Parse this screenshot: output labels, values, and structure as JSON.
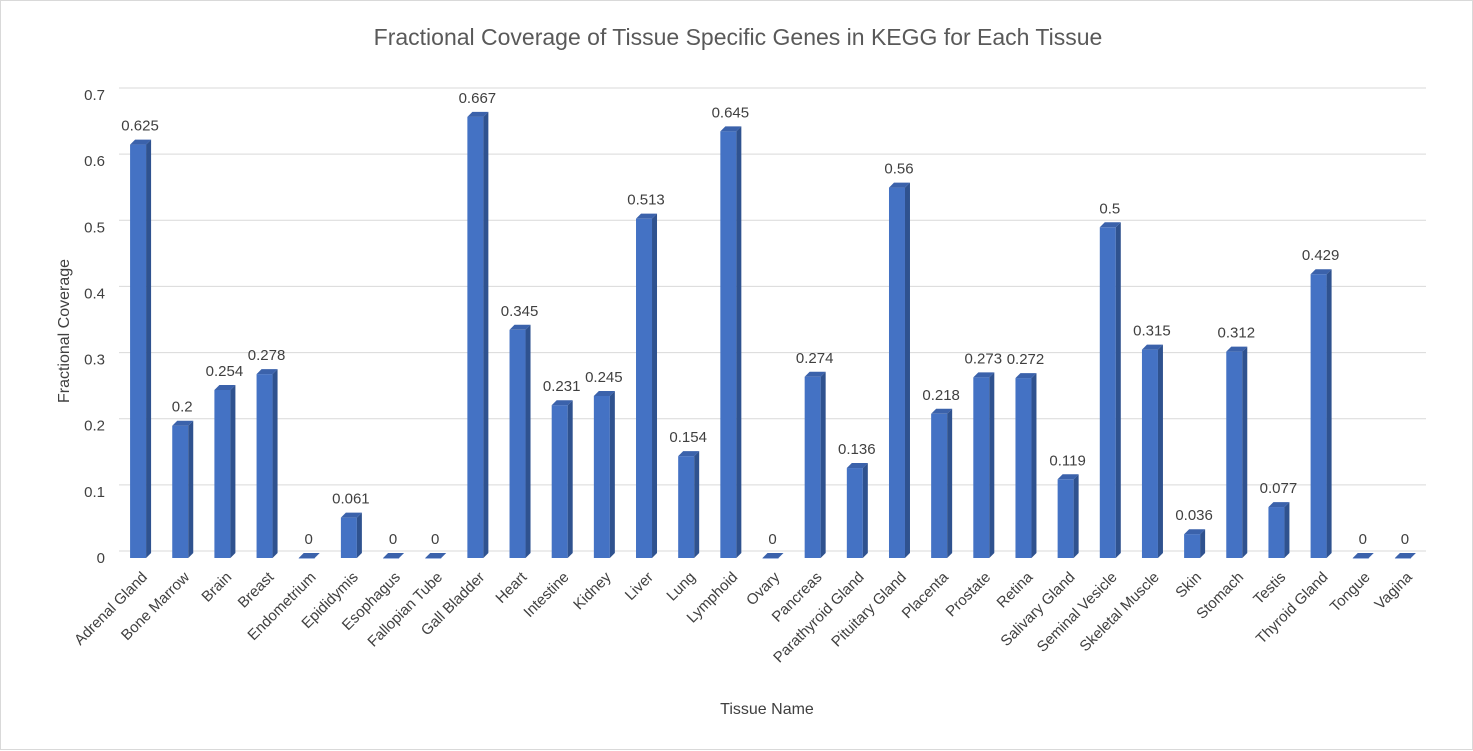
{
  "chart_data": {
    "type": "bar",
    "title": "Fractional Coverage of Tissue Specific Genes in KEGG for Each Tissue",
    "xlabel": "Tissue Name",
    "ylabel": "Fractional Coverage",
    "ylim": [
      0,
      0.7
    ],
    "yticks": [
      "0",
      "0.1",
      "0.2",
      "0.3",
      "0.4",
      "0.5",
      "0.6",
      "0.7"
    ],
    "grid": true,
    "legend": "none",
    "bar_color": "#4472c4",
    "categories": [
      "Adrenal Gland",
      "Bone Marrow",
      "Brain",
      "Breast",
      "Endometrium",
      "Epididymis",
      "Esophagus",
      "Fallopian Tube",
      "Gall Bladder",
      "Heart",
      "Intestine",
      "Kidney",
      "Liver",
      "Lung",
      "Lymphoid",
      "Ovary",
      "Pancreas",
      "Parathyroid Gland",
      "Pituitary Gland",
      "Placenta",
      "Prostate",
      "Retina",
      "Salivary Gland",
      "Seminal Vesicle",
      "Skeletal Muscle",
      "Skin",
      "Stomach",
      "Testis",
      "Thyroid Gland",
      "Tongue",
      "Vagina"
    ],
    "values": [
      0.625,
      0.2,
      0.254,
      0.278,
      0,
      0.061,
      0,
      0,
      0.667,
      0.345,
      0.231,
      0.245,
      0.513,
      0.154,
      0.645,
      0,
      0.274,
      0.136,
      0.56,
      0.218,
      0.273,
      0.272,
      0.119,
      0.5,
      0.315,
      0.036,
      0.312,
      0.077,
      0.429,
      0,
      0
    ],
    "data_labels": [
      "0.625",
      "0.2",
      "0.254",
      "0.278",
      "0",
      "0.061",
      "0",
      "0",
      "0.667",
      "0.345",
      "0.231",
      "0.245",
      "0.513",
      "0.154",
      "0.645",
      "0",
      "0.274",
      "0.136",
      "0.56",
      "0.218",
      "0.273",
      "0.272",
      "0.119",
      "0.5",
      "0.315",
      "0.036",
      "0.312",
      "0.077",
      "0.429",
      "0",
      "0"
    ]
  }
}
